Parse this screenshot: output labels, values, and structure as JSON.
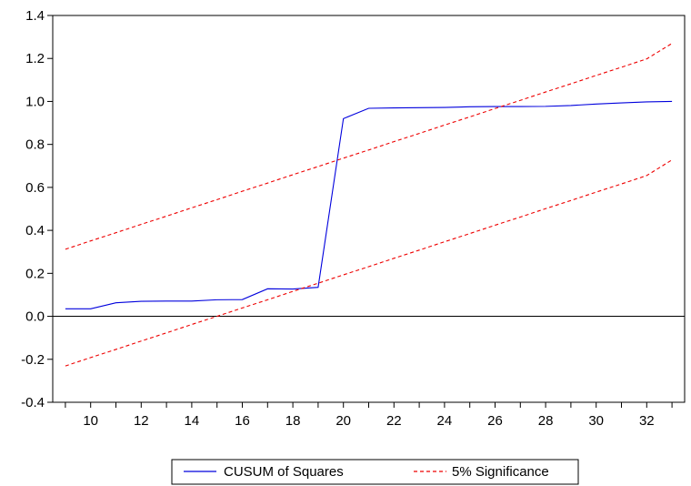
{
  "chart_data": {
    "type": "line",
    "title": "",
    "xlabel": "",
    "ylabel": "",
    "x": [
      9,
      10,
      11,
      12,
      13,
      14,
      15,
      16,
      17,
      18,
      19,
      20,
      21,
      22,
      23,
      24,
      25,
      26,
      27,
      28,
      29,
      30,
      31,
      32,
      33
    ],
    "xlim": [
      8.5,
      33.5
    ],
    "ylim": [
      -0.4,
      1.4
    ],
    "x_ticks": [
      "10",
      "12",
      "14",
      "16",
      "18",
      "20",
      "22",
      "24",
      "26",
      "28",
      "30",
      "32"
    ],
    "y_ticks": [
      "-0.4",
      "-0.2",
      "0.0",
      "0.2",
      "0.4",
      "0.6",
      "0.8",
      "1.0",
      "1.2",
      "1.4"
    ],
    "zero_line": true,
    "grid": false,
    "legend_position": "bottom-center",
    "series": [
      {
        "name": "CUSUM of Squares",
        "color": "#0000dd",
        "style": "solid",
        "values": [
          0.035,
          0.035,
          0.063,
          0.07,
          0.071,
          0.071,
          0.077,
          0.078,
          0.128,
          0.127,
          0.135,
          0.92,
          0.968,
          0.97,
          0.971,
          0.972,
          0.975,
          0.976,
          0.976,
          0.977,
          0.981,
          0.988,
          0.993,
          0.998,
          1.0
        ]
      },
      {
        "name": "5% Significance",
        "color": "#ee0000",
        "style": "dashed",
        "values": [
          0.312,
          0.351,
          0.389,
          0.428,
          0.466,
          0.505,
          0.543,
          0.582,
          0.62,
          0.659,
          0.697,
          0.736,
          0.774,
          0.813,
          0.851,
          0.89,
          0.928,
          0.967,
          1.005,
          1.044,
          1.082,
          1.121,
          1.159,
          1.198,
          1.27
        ]
      },
      {
        "name": "5% Significance",
        "color": "#ee0000",
        "style": "dashed",
        "values": [
          -0.231,
          -0.192,
          -0.154,
          -0.115,
          -0.077,
          -0.038,
          0.0,
          0.039,
          0.077,
          0.116,
          0.154,
          0.193,
          0.231,
          0.27,
          0.308,
          0.347,
          0.385,
          0.424,
          0.462,
          0.501,
          0.539,
          0.578,
          0.616,
          0.655,
          0.728
        ]
      }
    ]
  }
}
